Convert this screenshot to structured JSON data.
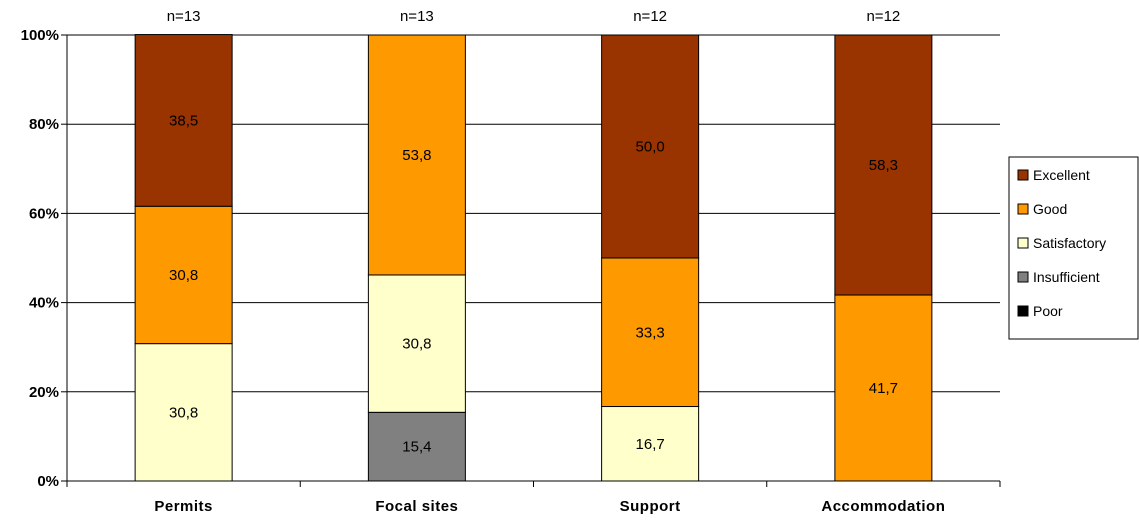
{
  "chart_data": {
    "type": "bar",
    "stacked": true,
    "percent": true,
    "categories": [
      "Permits",
      "Focal sites",
      "Support",
      "Accommodation"
    ],
    "n_labels": [
      "n=13",
      "n=13",
      "n=12",
      "n=12"
    ],
    "series": [
      {
        "name": "Poor",
        "color": "#000000",
        "values": [
          0,
          0,
          0,
          0
        ]
      },
      {
        "name": "Insufficient",
        "color": "#808080",
        "values": [
          0,
          15.4,
          0,
          0
        ]
      },
      {
        "name": "Satisfactory",
        "color": "#ffffcc",
        "values": [
          30.8,
          30.8,
          16.7,
          0
        ]
      },
      {
        "name": "Good",
        "color": "#ff9900",
        "values": [
          30.8,
          53.8,
          33.3,
          41.7
        ]
      },
      {
        "name": "Excellent",
        "color": "#993300",
        "values": [
          38.5,
          0,
          50.0,
          58.3
        ]
      }
    ],
    "data_labels": [
      [
        "",
        "",
        "30,8",
        "30,8",
        "38,5"
      ],
      [
        "",
        "15,4",
        "30,8",
        "53,8",
        ""
      ],
      [
        "",
        "",
        "16,7",
        "33,3",
        "50,0"
      ],
      [
        "",
        "",
        "",
        "41,7",
        "58,3"
      ]
    ],
    "yticks": [
      "0%",
      "20%",
      "40%",
      "60%",
      "80%",
      "100%"
    ],
    "ylim": [
      0,
      100
    ],
    "legend": {
      "position": "right",
      "items": [
        "Excellent",
        "Good",
        "Satisfactory",
        "Insufficient",
        "Poor"
      ]
    },
    "grid": true
  }
}
